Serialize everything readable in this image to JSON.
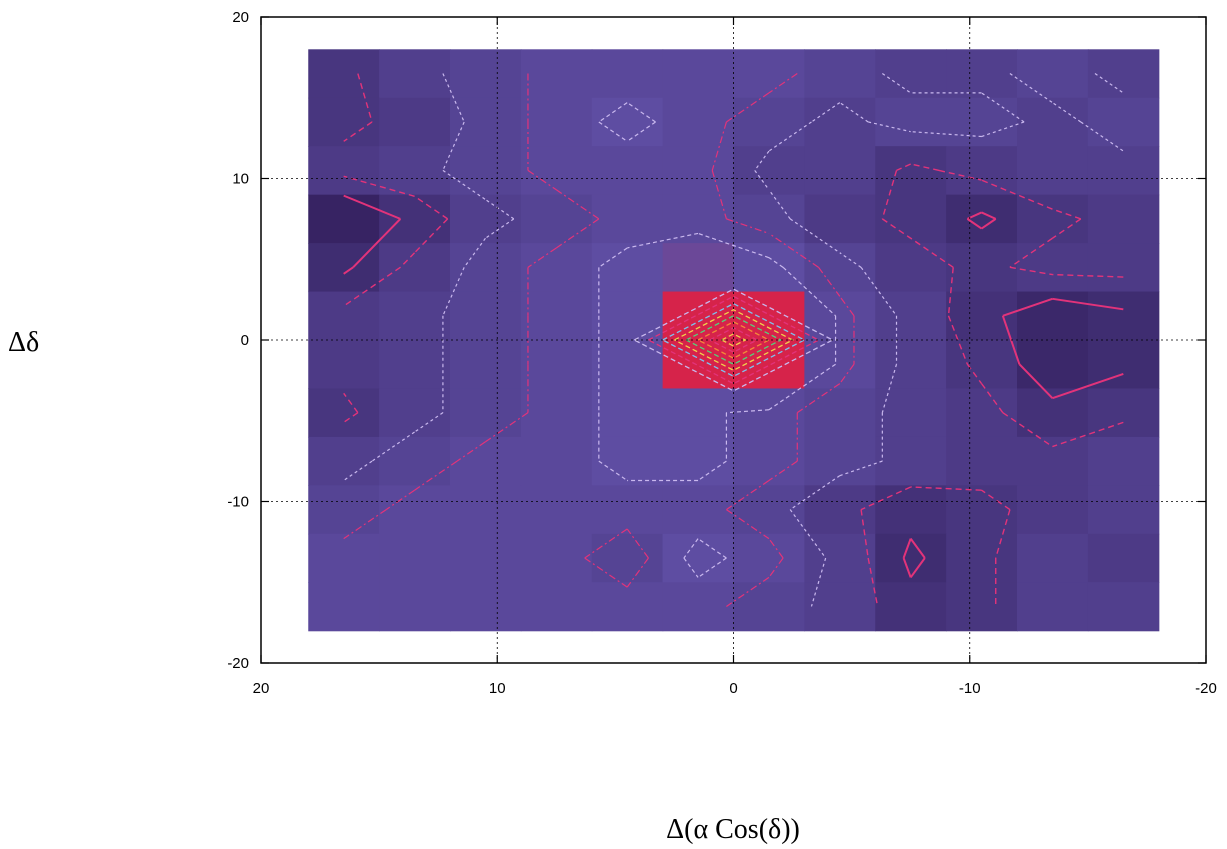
{
  "chart_data": {
    "type": "heatmap",
    "title": "",
    "xlabel": "Δ(α Cos(δ))",
    "ylabel": "Δδ",
    "xlim": [
      20,
      -20
    ],
    "ylim": [
      -20,
      20
    ],
    "x_ticks": [
      20,
      10,
      0,
      -10,
      -20
    ],
    "x_tick_labels": [
      "20",
      "10",
      "0",
      "-10",
      "-20"
    ],
    "y_ticks": [
      20,
      10,
      0,
      -10,
      -20
    ],
    "y_tick_labels": [
      "20",
      "10",
      "0",
      "-10",
      "-20"
    ],
    "grid": true,
    "cell_size": 3,
    "x_centers": [
      16.5,
      13.5,
      10.5,
      7.5,
      4.5,
      1.5,
      -1.5,
      -4.5,
      -7.5,
      -10.5,
      -13.5,
      -16.5
    ],
    "y_centers": [
      16.5,
      13.5,
      10.5,
      7.5,
      4.5,
      1.5,
      -1.5,
      -4.5,
      -7.5,
      -10.5,
      -13.5,
      -16.5
    ],
    "values": [
      [
        0.3,
        0.4,
        0.45,
        0.5,
        0.5,
        0.5,
        0.5,
        0.45,
        0.4,
        0.4,
        0.45,
        0.4
      ],
      [
        0.3,
        0.35,
        0.45,
        0.5,
        0.55,
        0.5,
        0.45,
        0.4,
        0.45,
        0.45,
        0.4,
        0.45
      ],
      [
        0.35,
        0.4,
        0.45,
        0.5,
        0.5,
        0.5,
        0.4,
        0.4,
        0.3,
        0.35,
        0.4,
        0.4
      ],
      [
        0.1,
        0.25,
        0.4,
        0.45,
        0.5,
        0.5,
        0.45,
        0.35,
        0.3,
        0.2,
        0.3,
        0.35
      ],
      [
        0.2,
        0.35,
        0.45,
        0.5,
        0.55,
        0.6,
        0.55,
        0.45,
        0.35,
        0.3,
        0.35,
        0.35
      ],
      [
        0.35,
        0.4,
        0.45,
        0.5,
        0.55,
        1.0,
        1.0,
        0.5,
        0.4,
        0.25,
        0.15,
        0.2
      ],
      [
        0.35,
        0.4,
        0.45,
        0.5,
        0.55,
        1.0,
        1.0,
        0.5,
        0.4,
        0.3,
        0.15,
        0.2
      ],
      [
        0.3,
        0.4,
        0.45,
        0.5,
        0.55,
        0.55,
        0.5,
        0.45,
        0.4,
        0.35,
        0.25,
        0.3
      ],
      [
        0.4,
        0.45,
        0.5,
        0.5,
        0.55,
        0.55,
        0.5,
        0.45,
        0.4,
        0.35,
        0.35,
        0.4
      ],
      [
        0.45,
        0.5,
        0.5,
        0.5,
        0.5,
        0.5,
        0.45,
        0.35,
        0.25,
        0.3,
        0.35,
        0.4
      ],
      [
        0.5,
        0.5,
        0.5,
        0.5,
        0.45,
        0.55,
        0.5,
        0.4,
        0.2,
        0.3,
        0.4,
        0.35
      ],
      [
        0.5,
        0.5,
        0.5,
        0.5,
        0.5,
        0.5,
        0.45,
        0.4,
        0.25,
        0.3,
        0.4,
        0.4
      ]
    ],
    "colors": {
      "scale_low": "#2e1a55",
      "scale_mid": "#5e4da2",
      "scale_high": "#d6234a",
      "contour": "#e2337a",
      "contour_light": "#c9b8ee",
      "peak_contours": [
        "#7ec3f0",
        "#f0d24a",
        "#55d27a",
        "#f28a3a"
      ],
      "axis": "#000000",
      "grid": "#000000"
    }
  }
}
